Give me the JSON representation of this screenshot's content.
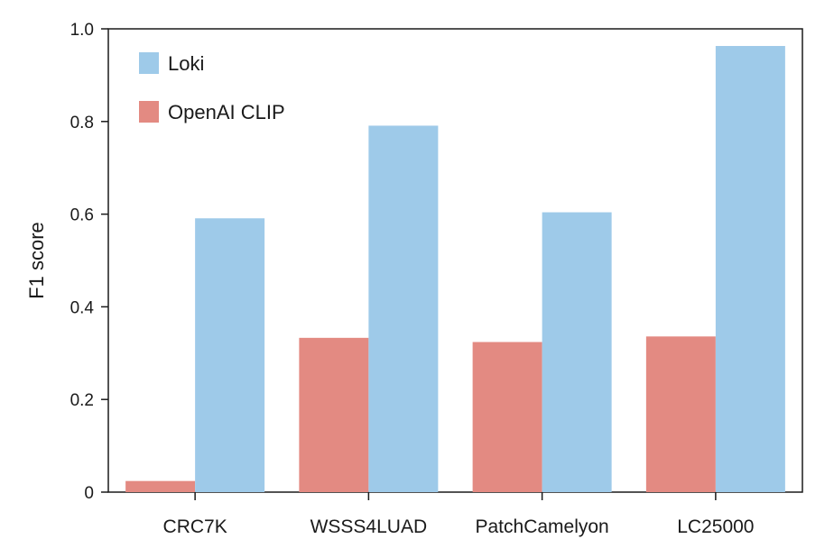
{
  "chart_data": {
    "type": "bar",
    "ylabel": "F1 score",
    "xlabel": "",
    "ylim": [
      0,
      1.0
    ],
    "yticks": [
      0,
      0.2,
      0.4,
      0.6,
      0.8,
      1.0
    ],
    "ytick_labels": [
      "0",
      "0.2",
      "0.4",
      "0.6",
      "0.8",
      "1.0"
    ],
    "categories": [
      "CRC7K",
      "WSSS4LUAD",
      "PatchCamelyon",
      "LC25000"
    ],
    "series": [
      {
        "name": "OpenAI CLIP",
        "color": "#e38a82",
        "values": [
          0.024,
          0.333,
          0.324,
          0.336
        ]
      },
      {
        "name": "Loki",
        "color": "#9ecae9",
        "values": [
          0.591,
          0.791,
          0.604,
          0.963
        ]
      }
    ],
    "legend_order": [
      "Loki",
      "OpenAI CLIP"
    ],
    "legend_position": "top-left",
    "grid": false
  }
}
